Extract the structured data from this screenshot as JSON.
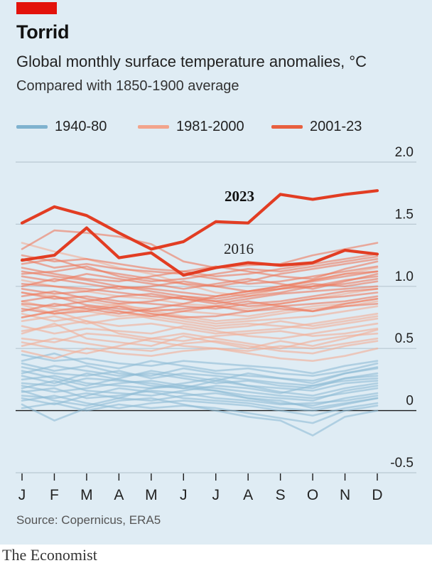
{
  "header": {
    "title": "Torrid",
    "subtitle": "Global monthly surface temperature anomalies, °C",
    "note": "Compared with 1850-1900 average"
  },
  "legend": [
    {
      "label": "1940-80",
      "color": "#7fb2cf"
    },
    {
      "label": "1981-2000",
      "color": "#f2a48c"
    },
    {
      "label": "2001-23",
      "color": "#e8603f"
    }
  ],
  "source": "Source: Copernicus, ERA5",
  "brand": "The Economist",
  "chart_data": {
    "type": "line",
    "x": [
      "J",
      "F",
      "M",
      "A",
      "M",
      "J",
      "J",
      "A",
      "S",
      "O",
      "N",
      "D"
    ],
    "ylim": [
      -0.5,
      2.0
    ],
    "yticks": [
      2.0,
      1.5,
      1.0,
      0.5,
      0,
      -0.5
    ],
    "ytick_labels": [
      "2.0",
      "1.5",
      "1.0",
      "0.5",
      "0",
      "-0.5"
    ],
    "colors": {
      "1940-80": "#8fbdd6",
      "1981-2000": "#f4ad95",
      "2001-23": "#ee7a5e",
      "highlight": "#e23d23"
    },
    "series": [
      {
        "name": "2023",
        "group": "highlight",
        "label": "2023",
        "values": [
          1.51,
          1.64,
          1.57,
          1.43,
          1.3,
          1.36,
          1.52,
          1.51,
          1.74,
          1.7,
          1.74,
          1.77
        ]
      },
      {
        "name": "2016",
        "group": "highlight",
        "label": "2016",
        "values": [
          1.21,
          1.25,
          1.47,
          1.23,
          1.27,
          1.09,
          1.15,
          1.19,
          1.17,
          1.19,
          1.29,
          1.26
        ]
      }
    ],
    "background_series": {
      "1940-80": [
        [
          0.28,
          0.22,
          0.3,
          0.25,
          0.2,
          0.18,
          0.24,
          0.2,
          0.15,
          0.12,
          0.18,
          0.22
        ],
        [
          0.1,
          0.05,
          0.12,
          0.18,
          0.15,
          0.1,
          0.08,
          0.06,
          0.02,
          0.0,
          0.05,
          0.1
        ],
        [
          0.35,
          0.3,
          0.28,
          0.32,
          0.26,
          0.3,
          0.28,
          0.25,
          0.22,
          0.2,
          0.26,
          0.3
        ],
        [
          0.05,
          -0.08,
          0.02,
          0.08,
          0.1,
          0.05,
          0.0,
          -0.05,
          -0.08,
          -0.2,
          -0.05,
          0.0
        ],
        [
          0.2,
          0.15,
          0.18,
          0.22,
          0.24,
          0.2,
          0.18,
          0.15,
          0.12,
          0.1,
          0.14,
          0.18
        ],
        [
          0.38,
          0.32,
          0.36,
          0.3,
          0.28,
          0.34,
          0.3,
          0.28,
          0.26,
          0.22,
          0.3,
          0.35
        ],
        [
          0.15,
          0.18,
          0.1,
          0.12,
          0.16,
          0.14,
          0.1,
          0.08,
          0.05,
          0.06,
          0.08,
          0.12
        ],
        [
          0.25,
          0.28,
          0.22,
          0.2,
          0.18,
          0.22,
          0.26,
          0.2,
          0.18,
          0.16,
          0.22,
          0.24
        ],
        [
          0.02,
          0.06,
          0.0,
          0.05,
          0.02,
          0.04,
          0.02,
          -0.02,
          -0.06,
          -0.1,
          0.0,
          0.04
        ],
        [
          0.3,
          0.36,
          0.32,
          0.28,
          0.3,
          0.26,
          0.22,
          0.24,
          0.2,
          0.18,
          0.26,
          0.28
        ],
        [
          0.45,
          0.4,
          0.42,
          0.38,
          0.36,
          0.4,
          0.38,
          0.36,
          0.34,
          0.3,
          0.36,
          0.4
        ],
        [
          0.12,
          0.1,
          0.14,
          0.1,
          0.08,
          0.12,
          0.14,
          0.1,
          0.06,
          0.04,
          0.1,
          0.14
        ],
        [
          0.22,
          0.2,
          0.26,
          0.24,
          0.22,
          0.18,
          0.16,
          0.12,
          0.1,
          0.08,
          0.16,
          0.2
        ],
        [
          0.08,
          0.12,
          0.06,
          0.02,
          0.06,
          0.08,
          0.06,
          0.04,
          0.0,
          -0.04,
          0.02,
          0.06
        ],
        [
          0.32,
          0.26,
          0.2,
          0.26,
          0.32,
          0.28,
          0.24,
          0.3,
          0.26,
          0.24,
          0.3,
          0.34
        ],
        [
          0.18,
          0.24,
          0.16,
          0.14,
          0.12,
          0.16,
          0.2,
          0.18,
          0.14,
          0.2,
          0.24,
          0.26
        ],
        [
          0.4,
          0.46,
          0.38,
          0.34,
          0.4,
          0.36,
          0.32,
          0.34,
          0.3,
          0.28,
          0.32,
          0.38
        ],
        [
          0.16,
          0.08,
          0.04,
          0.1,
          0.18,
          0.2,
          0.16,
          0.1,
          0.08,
          0.02,
          0.06,
          0.1
        ]
      ],
      "1981-2000": [
        [
          0.62,
          0.7,
          0.58,
          0.55,
          0.52,
          0.6,
          0.55,
          0.5,
          0.56,
          0.52,
          0.58,
          0.65
        ],
        [
          0.48,
          0.42,
          0.5,
          0.46,
          0.44,
          0.48,
          0.5,
          0.46,
          0.42,
          0.4,
          0.44,
          0.5
        ],
        [
          0.75,
          0.8,
          0.72,
          0.68,
          0.7,
          0.66,
          0.62,
          0.64,
          0.66,
          0.7,
          0.74,
          0.78
        ],
        [
          0.58,
          0.55,
          0.62,
          0.6,
          0.56,
          0.52,
          0.5,
          0.48,
          0.52,
          0.5,
          0.54,
          0.58
        ],
        [
          0.88,
          0.82,
          0.8,
          0.76,
          0.78,
          0.74,
          0.7,
          0.72,
          0.74,
          0.76,
          0.8,
          0.84
        ],
        [
          1.35,
          1.28,
          1.22,
          1.15,
          1.1,
          1.02,
          0.95,
          0.92,
          0.98,
          1.05,
          1.1,
          1.15
        ],
        [
          0.68,
          0.62,
          0.66,
          0.64,
          0.62,
          0.68,
          0.64,
          0.6,
          0.58,
          0.62,
          0.66,
          0.7
        ],
        [
          0.52,
          0.58,
          0.54,
          0.5,
          0.48,
          0.54,
          0.56,
          0.52,
          0.48,
          0.46,
          0.52,
          0.56
        ],
        [
          0.78,
          0.72,
          0.76,
          0.8,
          0.74,
          0.7,
          0.66,
          0.68,
          0.72,
          0.68,
          0.72,
          0.76
        ],
        [
          0.95,
          0.92,
          0.88,
          0.84,
          0.82,
          0.8,
          0.78,
          0.76,
          0.8,
          0.84,
          0.86,
          0.9
        ],
        [
          0.64,
          0.68,
          0.72,
          0.62,
          0.58,
          0.56,
          0.6,
          0.62,
          0.64,
          0.6,
          0.62,
          0.66
        ],
        [
          0.85,
          0.78,
          0.82,
          0.86,
          0.8,
          0.76,
          0.72,
          0.74,
          0.78,
          0.82,
          0.84,
          0.88
        ],
        [
          1.05,
          1.0,
          0.96,
          0.92,
          0.9,
          0.86,
          0.84,
          0.82,
          0.86,
          0.9,
          0.94,
          0.98
        ],
        [
          0.55,
          0.5,
          0.46,
          0.52,
          0.58,
          0.62,
          0.58,
          0.54,
          0.5,
          0.56,
          0.6,
          0.62
        ],
        [
          0.72,
          0.76,
          0.7,
          0.74,
          0.76,
          0.72,
          0.68,
          0.7,
          0.68,
          0.66,
          0.7,
          0.74
        ]
      ],
      "2001-23": [
        [
          1.3,
          1.45,
          1.43,
          1.4,
          1.34,
          1.2,
          1.15,
          1.17,
          1.18,
          1.25,
          1.3,
          1.35
        ],
        [
          1.12,
          1.08,
          1.05,
          1.0,
          0.98,
          0.95,
          0.92,
          0.96,
          1.0,
          1.05,
          1.1,
          1.12
        ],
        [
          1.02,
          1.0,
          0.98,
          0.95,
          0.92,
          0.9,
          0.88,
          0.92,
          0.95,
          1.0,
          1.05,
          1.08
        ],
        [
          0.95,
          0.9,
          0.92,
          0.88,
          0.86,
          0.84,
          0.82,
          0.86,
          0.88,
          0.92,
          0.96,
          0.98
        ],
        [
          0.88,
          0.92,
          0.85,
          0.82,
          0.8,
          0.82,
          0.84,
          0.8,
          0.84,
          0.86,
          0.88,
          0.92
        ],
        [
          1.18,
          1.22,
          1.14,
          1.1,
          1.06,
          1.02,
          1.0,
          1.04,
          1.1,
          1.14,
          1.18,
          1.22
        ],
        [
          0.82,
          0.78,
          0.8,
          0.84,
          0.78,
          0.75,
          0.76,
          0.8,
          0.82,
          0.8,
          0.84,
          0.86
        ],
        [
          1.08,
          1.04,
          1.1,
          1.06,
          1.02,
          0.98,
          1.02,
          1.06,
          1.02,
          0.98,
          1.04,
          1.1
        ],
        [
          0.92,
          0.96,
          0.9,
          0.86,
          0.88,
          0.92,
          0.88,
          0.84,
          0.86,
          0.9,
          0.92,
          0.95
        ],
        [
          0.75,
          0.8,
          0.84,
          0.8,
          0.76,
          0.8,
          0.84,
          0.88,
          0.84,
          0.8,
          0.86,
          0.9
        ],
        [
          1.22,
          1.15,
          1.18,
          1.14,
          1.12,
          1.1,
          1.06,
          1.02,
          1.04,
          1.08,
          1.12,
          1.16
        ],
        [
          0.98,
          0.94,
          0.96,
          1.0,
          0.96,
          0.92,
          0.9,
          0.94,
          0.98,
          1.02,
          1.0,
          1.04
        ],
        [
          0.86,
          0.84,
          0.88,
          0.92,
          0.94,
          0.9,
          0.86,
          0.9,
          0.94,
          0.96,
          0.98,
          1.0
        ],
        [
          1.1,
          1.12,
          1.16,
          1.08,
          1.04,
          1.06,
          1.1,
          1.14,
          1.12,
          1.16,
          1.2,
          1.24
        ],
        [
          0.8,
          0.86,
          0.82,
          0.78,
          0.82,
          0.86,
          0.92,
          0.96,
          1.0,
          1.04,
          1.08,
          1.12
        ],
        [
          1.25,
          1.2,
          1.22,
          1.18,
          1.14,
          1.12,
          1.08,
          1.1,
          1.14,
          1.18,
          1.22,
          1.26
        ],
        [
          1.0,
          1.06,
          1.02,
          0.98,
          1.0,
          1.04,
          1.0,
          0.96,
          0.98,
          1.0,
          1.02,
          1.06
        ],
        [
          1.15,
          1.1,
          1.06,
          1.04,
          1.08,
          1.12,
          1.16,
          1.12,
          1.08,
          1.06,
          1.14,
          1.2
        ]
      ]
    }
  }
}
